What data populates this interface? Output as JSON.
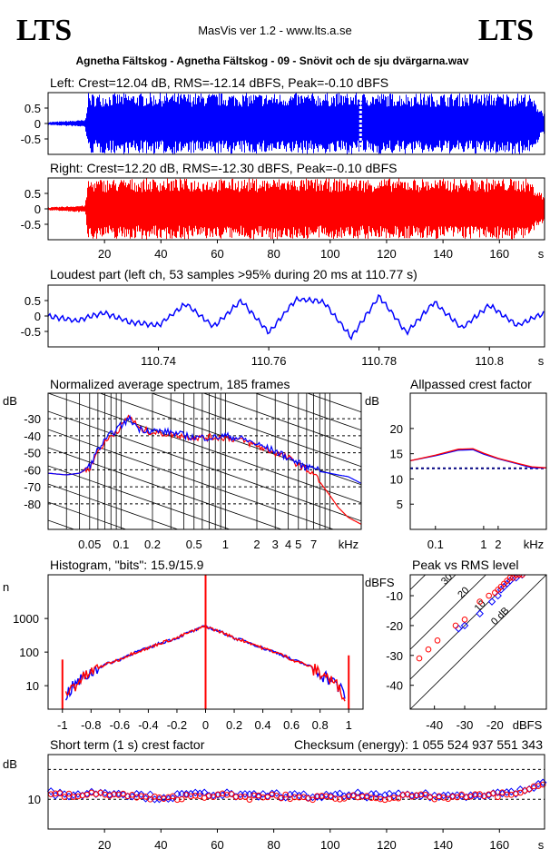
{
  "header": {
    "logo_left": "LTS",
    "logo_right": "LTS",
    "app_title": "MasVis ver 1.2 - www.lts.a.se",
    "file_title": "Agnetha Fältskog - Agnetha Fältskog - 09 - Snövit och de sju dvärgarna.wav"
  },
  "colors": {
    "left": "#0000ff",
    "right": "#ff0000"
  },
  "chart_data": [
    {
      "id": "left-waveform",
      "type": "area",
      "title": "Left: Crest=12.04 dB, RMS=-12.14 dBFS, Peak=-0.10 dBFS",
      "ylim": [
        -1,
        1
      ],
      "yticks": [
        "0.5",
        "0",
        "-0.5"
      ],
      "xlim": [
        0,
        176
      ],
      "series": [
        {
          "values": [
            0.05,
            0.12,
            0.98,
            0.99,
            0.99,
            0.98,
            0.99,
            0.99,
            0.98,
            0.99,
            0.99,
            0.35
          ]
        }
      ],
      "envelope_x": [
        0,
        13,
        14,
        40,
        60,
        80,
        100,
        120,
        140,
        160,
        170,
        176
      ],
      "marker_x": 110.77
    },
    {
      "id": "right-waveform",
      "type": "area",
      "title": "Right: Crest=12.20 dB, RMS=-12.30 dBFS, Peak=-0.10 dBFS",
      "ylim": [
        -1,
        1
      ],
      "yticks": [
        "0.5",
        "0",
        "-0.5"
      ],
      "xlim": [
        0,
        176
      ],
      "xticks": [
        "20",
        "40",
        "60",
        "80",
        "100",
        "120",
        "140",
        "160"
      ],
      "xunit": "s",
      "series": [
        {
          "values": [
            0.05,
            0.12,
            0.97,
            0.99,
            0.98,
            0.99,
            0.98,
            0.99,
            0.98,
            0.99,
            0.98,
            0.4
          ]
        }
      ],
      "envelope_x": [
        0,
        13,
        14,
        40,
        60,
        80,
        100,
        120,
        140,
        160,
        170,
        176
      ]
    },
    {
      "id": "loudest-part",
      "type": "line",
      "title": "Loudest part (left  ch, 53 samples >95% during 20 ms at 110.77 s)",
      "ylim": [
        -1,
        1
      ],
      "yticks": [
        "0.5",
        "0",
        "-0.5"
      ],
      "xlim": [
        110.72,
        110.81
      ],
      "xticks": [
        "110.74",
        "110.76",
        "110.78",
        "110.8"
      ],
      "xunit": "s",
      "x": [
        110.72,
        110.725,
        110.73,
        110.735,
        110.74,
        110.745,
        110.75,
        110.755,
        110.76,
        110.765,
        110.77,
        110.775,
        110.78,
        110.785,
        110.79,
        110.795,
        110.8,
        110.805,
        110.81
      ],
      "values": [
        0.0,
        -0.15,
        0.1,
        -0.2,
        -0.3,
        0.4,
        -0.35,
        0.5,
        -0.55,
        0.55,
        0.45,
        -0.7,
        0.65,
        -0.55,
        0.45,
        -0.4,
        0.35,
        -0.3,
        0.1
      ]
    },
    {
      "id": "spectrum",
      "type": "line",
      "title": "Normalized average spectrum, 185 frames",
      "ylabel": "dB",
      "ylim": [
        -95,
        -15
      ],
      "yticks": [
        "-30",
        "-40",
        "-50",
        "-60",
        "-70",
        "-80"
      ],
      "xlim": [
        0.02,
        20
      ],
      "xscale": "log",
      "xticks": [
        "0.05",
        "0.1",
        "0.2",
        "0.5",
        "1",
        "2",
        "3",
        "4",
        "5",
        "7"
      ],
      "xunit": "kHz",
      "x": [
        0.02,
        0.03,
        0.04,
        0.05,
        0.06,
        0.08,
        0.1,
        0.12,
        0.15,
        0.2,
        0.3,
        0.5,
        0.8,
        1,
        1.5,
        2,
        3,
        4,
        5,
        6,
        7,
        8,
        10,
        12,
        15,
        20
      ],
      "series": [
        {
          "values": [
            -62,
            -63,
            -62,
            -58,
            -48,
            -39,
            -34,
            -30,
            -36,
            -37,
            -38,
            -41,
            -41,
            -40,
            -42,
            -45,
            -49,
            -53,
            -56,
            -59,
            -57,
            -61,
            -62,
            -63,
            -64,
            -68
          ]
        },
        {
          "values": [
            -62,
            -63,
            -62,
            -59,
            -49,
            -40,
            -35,
            -28,
            -36,
            -38,
            -39,
            -41,
            -41,
            -41,
            -43,
            -46,
            -50,
            -53,
            -57,
            -60,
            -62,
            -67,
            -75,
            -82,
            -88,
            -92
          ]
        }
      ]
    },
    {
      "id": "allpassed-crest",
      "type": "line",
      "title": "Allpassed crest factor",
      "ylabel": "dB",
      "ylim": [
        0,
        27
      ],
      "yticks": [
        "20",
        "15",
        "10",
        "5"
      ],
      "xlim": [
        0.03,
        20
      ],
      "xscale": "log",
      "xticks": [
        "0.1",
        "1",
        "2"
      ],
      "xunit": "kHz",
      "x": [
        0.03,
        0.1,
        0.3,
        0.6,
        1,
        2,
        5,
        10,
        20
      ],
      "series": [
        {
          "values": [
            13.6,
            14.6,
            15.7,
            15.8,
            14.9,
            14.0,
            13.0,
            12.2,
            12.2
          ]
        },
        {
          "values": [
            13.6,
            14.7,
            15.9,
            16.0,
            15.1,
            14.1,
            13.1,
            12.4,
            12.2
          ]
        }
      ],
      "reference_line": 12.1
    },
    {
      "id": "histogram",
      "type": "line",
      "title": "Histogram, \"bits\": 15.9/15.9",
      "ylabel": "n",
      "yscale": "log",
      "ylim": [
        2,
        20000
      ],
      "yticks": [
        "1000",
        "100",
        "10"
      ],
      "xlim": [
        -1.1,
        1.1
      ],
      "xticks": [
        "-1",
        "-0.8",
        "-0.6",
        "-0.4",
        "-0.2",
        "0",
        "0.2",
        "0.4",
        "0.6",
        "0.8",
        "1"
      ],
      "x": [
        -0.98,
        -0.9,
        -0.8,
        -0.6,
        -0.4,
        -0.2,
        -0.05,
        0,
        0.05,
        0.2,
        0.4,
        0.6,
        0.8,
        0.9,
        0.98
      ],
      "values": [
        5,
        12,
        25,
        60,
        130,
        260,
        480,
        600,
        480,
        260,
        130,
        60,
        25,
        12,
        5
      ],
      "spikes": [
        {
          "x": -1,
          "n": 60
        },
        {
          "x": 0,
          "n": 20000
        },
        {
          "x": 1,
          "n": 80
        }
      ]
    },
    {
      "id": "peak-vs-rms",
      "type": "scatter",
      "title": "Peak vs RMS level",
      "ylabel": "dBFS",
      "ylim": [
        -48,
        -3
      ],
      "yticks": [
        "-10",
        "-20",
        "-30",
        "-40"
      ],
      "xlim": [
        -48,
        -3
      ],
      "xticks": [
        "-40",
        "-30",
        "-20"
      ],
      "xunit": "dBFS",
      "diagonal_labels": [
        "40",
        "30",
        "20",
        "10",
        "0 dB"
      ],
      "series": [
        {
          "x": [
            -32,
            -30,
            -25,
            -21,
            -19,
            -18,
            -17,
            -16,
            -15,
            -14,
            -13,
            -12,
            -11
          ],
          "y": [
            -21,
            -20,
            -16,
            -12,
            -10,
            -8,
            -7,
            -6,
            -5,
            -4,
            -4,
            -3,
            -3
          ]
        },
        {
          "x": [
            -45,
            -42,
            -39,
            -33,
            -30,
            -25,
            -22,
            -20,
            -19,
            -18,
            -17,
            -16,
            -15,
            -14,
            -13,
            -12,
            -11
          ],
          "y": [
            -31,
            -28,
            -25,
            -20,
            -18,
            -12,
            -10,
            -9,
            -8,
            -7,
            -6,
            -5,
            -4,
            -4,
            -3,
            -3,
            -3
          ]
        }
      ]
    },
    {
      "id": "short-term-crest",
      "type": "scatter",
      "title": "Short term (1 s) crest factor",
      "checksum_label": "Checksum (energy):  1 055 524 937 551 343",
      "ylabel": "dB",
      "ylim": [
        0,
        25
      ],
      "yticks": [
        "10"
      ],
      "xlim": [
        0,
        176
      ],
      "xticks": [
        "20",
        "40",
        "60",
        "80",
        "100",
        "120",
        "140",
        "160"
      ],
      "xunit": "s",
      "reference_lines": [
        10,
        20
      ],
      "series": [
        {
          "x": [
            2,
            10,
            20,
            30,
            40,
            50,
            60,
            70,
            80,
            90,
            100,
            110,
            120,
            130,
            140,
            150,
            160,
            170,
            175
          ],
          "values": [
            12,
            11.5,
            12.5,
            11.5,
            10.5,
            11.5,
            12,
            11,
            11.5,
            11,
            11,
            11.5,
            11,
            11.5,
            11,
            11.5,
            12,
            13,
            16
          ]
        },
        {
          "x": [
            2,
            10,
            20,
            30,
            40,
            50,
            60,
            70,
            80,
            90,
            100,
            110,
            120,
            130,
            140,
            150,
            160,
            170,
            175
          ],
          "values": [
            11.5,
            11,
            12,
            11,
            10,
            11,
            11.5,
            10.5,
            11,
            10.5,
            10.5,
            11,
            10.5,
            11,
            10.5,
            11,
            11.5,
            12.5,
            15
          ]
        }
      ]
    }
  ]
}
